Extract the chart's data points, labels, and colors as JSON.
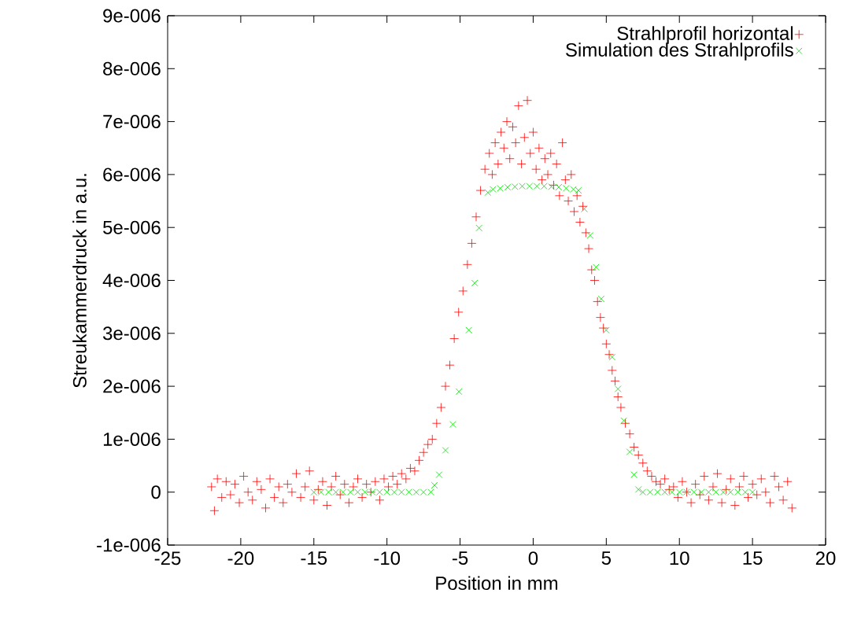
{
  "chart_data": {
    "type": "scatter",
    "xlabel": "Position in mm",
    "ylabel": "Streukammerdruck in a.u.",
    "xlim": [
      -25,
      20
    ],
    "xticks": [
      -25,
      -20,
      -15,
      -10,
      -5,
      0,
      5,
      10,
      15,
      20
    ],
    "ylim": [
      -1e-06,
      9e-06
    ],
    "yticks": [
      {
        "value": -1e-06,
        "label": "-1e-006"
      },
      0,
      {
        "value": 1e-06,
        "label": "1e-006"
      },
      {
        "value": 2e-06,
        "label": "2e-006"
      },
      {
        "value": 3e-06,
        "label": "3e-006"
      },
      {
        "value": 4e-06,
        "label": "4e-006"
      },
      {
        "value": 5e-06,
        "label": "5e-006"
      },
      {
        "value": 6e-06,
        "label": "6e-006"
      },
      {
        "value": 7e-06,
        "label": "7e-006"
      },
      {
        "value": 8e-06,
        "label": "8e-006"
      },
      {
        "value": 9e-06,
        "label": "9e-006"
      }
    ],
    "grid": false,
    "legend": "top right",
    "marker": "cross",
    "series": [
      {
        "name": "Strahlprofil horizontal",
        "color": "#ff0000",
        "x": [
          -22.0,
          -21.8,
          -21.6,
          -21.3,
          -21.0,
          -20.7,
          -20.4,
          -20.1,
          -19.8,
          -19.5,
          -19.2,
          -18.9,
          -18.6,
          -18.3,
          -18.0,
          -17.7,
          -17.4,
          -17.1,
          -16.8,
          -16.5,
          -16.2,
          -15.9,
          -15.6,
          -15.3,
          -15.0,
          -14.7,
          -14.4,
          -14.1,
          -13.8,
          -13.5,
          -13.2,
          -12.9,
          -12.6,
          -12.3,
          -12.0,
          -11.7,
          -11.4,
          -11.1,
          -10.8,
          -10.5,
          -10.2,
          -9.9,
          -9.6,
          -9.3,
          -9.0,
          -8.7,
          -8.4,
          -8.1,
          -7.8,
          -7.5,
          -7.2,
          -6.9,
          -6.6,
          -6.3,
          -6.0,
          -5.7,
          -5.4,
          -5.1,
          -4.8,
          -4.5,
          -4.2,
          -3.9,
          -3.6,
          -3.3,
          -3.0,
          -2.8,
          -2.6,
          -2.4,
          -2.2,
          -2.0,
          -1.8,
          -1.6,
          -1.4,
          -1.2,
          -1.0,
          -0.8,
          -0.6,
          -0.4,
          -0.2,
          0.0,
          0.2,
          0.4,
          0.6,
          0.8,
          1.0,
          1.2,
          1.4,
          1.6,
          1.8,
          2.0,
          2.2,
          2.4,
          2.6,
          2.8,
          3.0,
          3.2,
          3.4,
          3.6,
          3.8,
          4.0,
          4.2,
          4.4,
          4.6,
          4.8,
          5.0,
          5.2,
          5.4,
          5.6,
          5.8,
          6.0,
          6.3,
          6.6,
          6.9,
          7.2,
          7.5,
          7.8,
          8.1,
          8.4,
          8.7,
          9.0,
          9.3,
          9.6,
          9.9,
          10.2,
          10.5,
          10.8,
          11.1,
          11.4,
          11.7,
          12.0,
          12.3,
          12.6,
          12.9,
          13.2,
          13.5,
          13.8,
          14.1,
          14.4,
          14.7,
          15.0,
          15.3,
          15.6,
          15.9,
          16.2,
          16.5,
          16.8,
          17.1,
          17.4,
          17.7
        ],
        "values": [
          1e-07,
          -3.5e-07,
          2.5e-07,
          -1e-07,
          2e-07,
          -5e-08,
          1.5e-07,
          -2e-07,
          3e-07,
          0.0,
          -1.5e-07,
          2e-07,
          5e-08,
          -3e-07,
          2.5e-07,
          -1e-07,
          1e-07,
          -2e-07,
          1.5e-07,
          0.0,
          3.5e-07,
          -1e-07,
          1e-07,
          4e-07,
          -1.5e-07,
          5e-08,
          2e-07,
          -2.5e-07,
          1e-07,
          3e-07,
          -5e-08,
          1.5e-07,
          -2e-07,
          1e-07,
          2.5e-07,
          -1e-07,
          1.5e-07,
          0.0,
          2e-07,
          -1.5e-07,
          2.5e-07,
          1e-07,
          3e-07,
          1.5e-07,
          3.5e-07,
          2.5e-07,
          4.5e-07,
          4e-07,
          6e-07,
          7.5e-07,
          9e-07,
          1e-06,
          1.3e-06,
          1.6e-06,
          2e-06,
          2.4e-06,
          2.9e-06,
          3.4e-06,
          3.8e-06,
          4.3e-06,
          4.7e-06,
          5.2e-06,
          5.7e-06,
          6.1e-06,
          6.4e-06,
          6e-06,
          6.6e-06,
          6.2e-06,
          6.8e-06,
          6.5e-06,
          7e-06,
          6.3e-06,
          6.9e-06,
          6.6e-06,
          7.3e-06,
          6.2e-06,
          6.7e-06,
          7.4e-06,
          6.4e-06,
          6.8e-06,
          6.1e-06,
          6.5e-06,
          5.9e-06,
          6.3e-06,
          6e-06,
          6.4e-06,
          5.8e-06,
          6.2e-06,
          5.6e-06,
          6.6e-06,
          5.9e-06,
          5.5e-06,
          6e-06,
          5.3e-06,
          5.6e-06,
          5.1e-06,
          5.4e-06,
          4.9e-06,
          4.6e-06,
          4.2e-06,
          4e-06,
          3.6e-06,
          3.3e-06,
          3.1e-06,
          2.8e-06,
          2.6e-06,
          2.3e-06,
          2.1e-06,
          1.8e-06,
          1.6e-06,
          1.3e-06,
          1.1e-06,
          8.5e-07,
          7e-07,
          5.5e-07,
          4e-07,
          3e-07,
          2e-07,
          1.5e-07,
          2.5e-07,
          5e-08,
          1e-07,
          -1e-07,
          2e-07,
          0.0,
          -2e-07,
          1.5e-07,
          -5e-08,
          3e-07,
          -1.5e-07,
          1e-07,
          3.5e-07,
          -2e-07,
          5e-08,
          2.5e-07,
          -2.5e-07,
          1e-07,
          3e-07,
          -1e-07,
          1.5e-07,
          -5e-08,
          2.5e-07,
          0.0,
          -2e-07,
          3e-07,
          1e-07,
          -1.5e-07,
          2e-07,
          -3e-07
        ]
      },
      {
        "name": "Simulation des Strahlprofils",
        "color": "#00e000",
        "x": [
          -15.0,
          -14.5,
          -14.0,
          -13.5,
          -13.0,
          -12.5,
          -12.0,
          -11.5,
          -11.0,
          -10.5,
          -10.0,
          -9.5,
          -9.0,
          -8.5,
          -8.0,
          -7.5,
          -7.0,
          -6.75,
          -6.43,
          -6.0,
          -5.5,
          -5.08,
          -4.4,
          -4.0,
          -3.7,
          -3.1,
          -2.75,
          -2.25,
          -1.75,
          -1.25,
          -0.75,
          -0.25,
          0.25,
          0.75,
          1.25,
          1.75,
          2.25,
          2.75,
          3.1,
          3.5,
          3.9,
          4.3,
          4.65,
          5.0,
          5.4,
          5.8,
          6.2,
          6.6,
          6.9,
          7.2,
          7.5,
          8.0,
          8.5,
          9.0,
          9.5,
          10.0,
          10.5,
          11.0,
          11.5,
          12.0,
          12.5,
          13.0,
          13.5,
          14.0,
          14.5,
          15.0
        ],
        "values": [
          0.0,
          0.0,
          0.0,
          0.0,
          0.0,
          0.0,
          0.0,
          0.0,
          0.0,
          0.0,
          0.0,
          0.0,
          0.0,
          0.0,
          0.0,
          0.0,
          0.0,
          1.3e-07,
          3.3e-07,
          7.9e-07,
          1.28e-06,
          1.9e-06,
          3.06e-06,
          3.95e-06,
          4.99e-06,
          5.66e-06,
          5.72e-06,
          5.74e-06,
          5.76e-06,
          5.77e-06,
          5.78e-06,
          5.78e-06,
          5.78e-06,
          5.78e-06,
          5.77e-06,
          5.76e-06,
          5.74e-06,
          5.72e-06,
          5.7e-06,
          5.35e-06,
          4.85e-06,
          4.25e-06,
          3.65e-06,
          3.06e-06,
          2.55e-06,
          1.95e-06,
          1.35e-06,
          7.6e-07,
          3.3e-07,
          5e-08,
          0.0,
          0.0,
          0.0,
          0.0,
          0.0,
          0.0,
          0.0,
          0.0,
          0.0,
          0.0,
          0.0,
          0.0,
          0.0,
          0.0,
          0.0,
          0.0
        ]
      }
    ]
  }
}
